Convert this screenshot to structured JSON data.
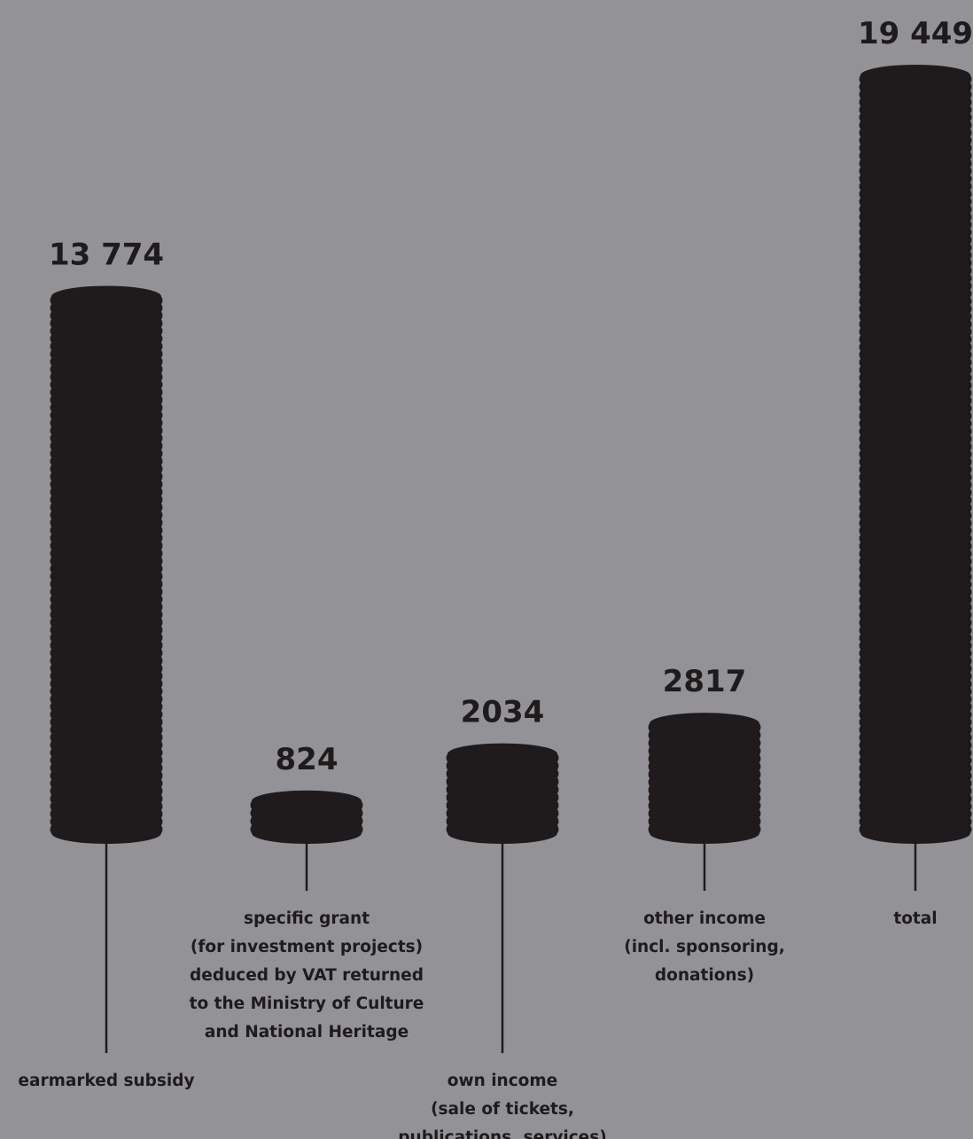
{
  "chart_data": {
    "type": "bar",
    "colors": {
      "background": "#939296",
      "bar": "#1f1b1c",
      "text": "#1f1b1c"
    },
    "bars": [
      {
        "value": 13774,
        "value_label": "13 774",
        "label_lines": [
          "earmarked subsidy"
        ]
      },
      {
        "value": 824,
        "value_label": "824",
        "label_lines": [
          "specific grant",
          "(for investment projects)",
          "deduced by VAT returned",
          "to the Ministry of Culture",
          "and National Heritage"
        ]
      },
      {
        "value": 2034,
        "value_label": "2034",
        "label_lines": [
          "own income",
          "(sale of tickets,",
          "publications, services)"
        ]
      },
      {
        "value": 2817,
        "value_label": "2817",
        "label_lines": [
          "other income",
          "(incl. sponsoring,",
          "donations)"
        ]
      },
      {
        "value": 19449,
        "value_label": "19 449",
        "label_lines": [
          "total"
        ]
      }
    ]
  }
}
